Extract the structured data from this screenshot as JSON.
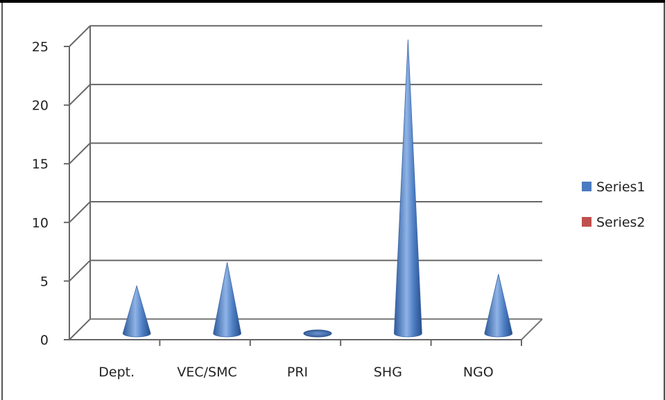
{
  "chart_data": {
    "type": "bar",
    "style": "3d-cone",
    "categories": [
      "Dept.",
      "VEC/SMC",
      "PRI",
      "SHG",
      "NGO"
    ],
    "series": [
      {
        "name": "Series1",
        "values": [
          4,
          6,
          0,
          25,
          5
        ],
        "color": "#4a7ac0"
      },
      {
        "name": "Series2",
        "values": [
          0,
          0,
          0,
          0,
          0
        ],
        "color": "#c0504d"
      }
    ],
    "y_ticks": [
      "0",
      "5",
      "10",
      "15",
      "20",
      "25"
    ],
    "ylim": [
      0,
      25
    ],
    "grid": true,
    "legend": "right"
  }
}
